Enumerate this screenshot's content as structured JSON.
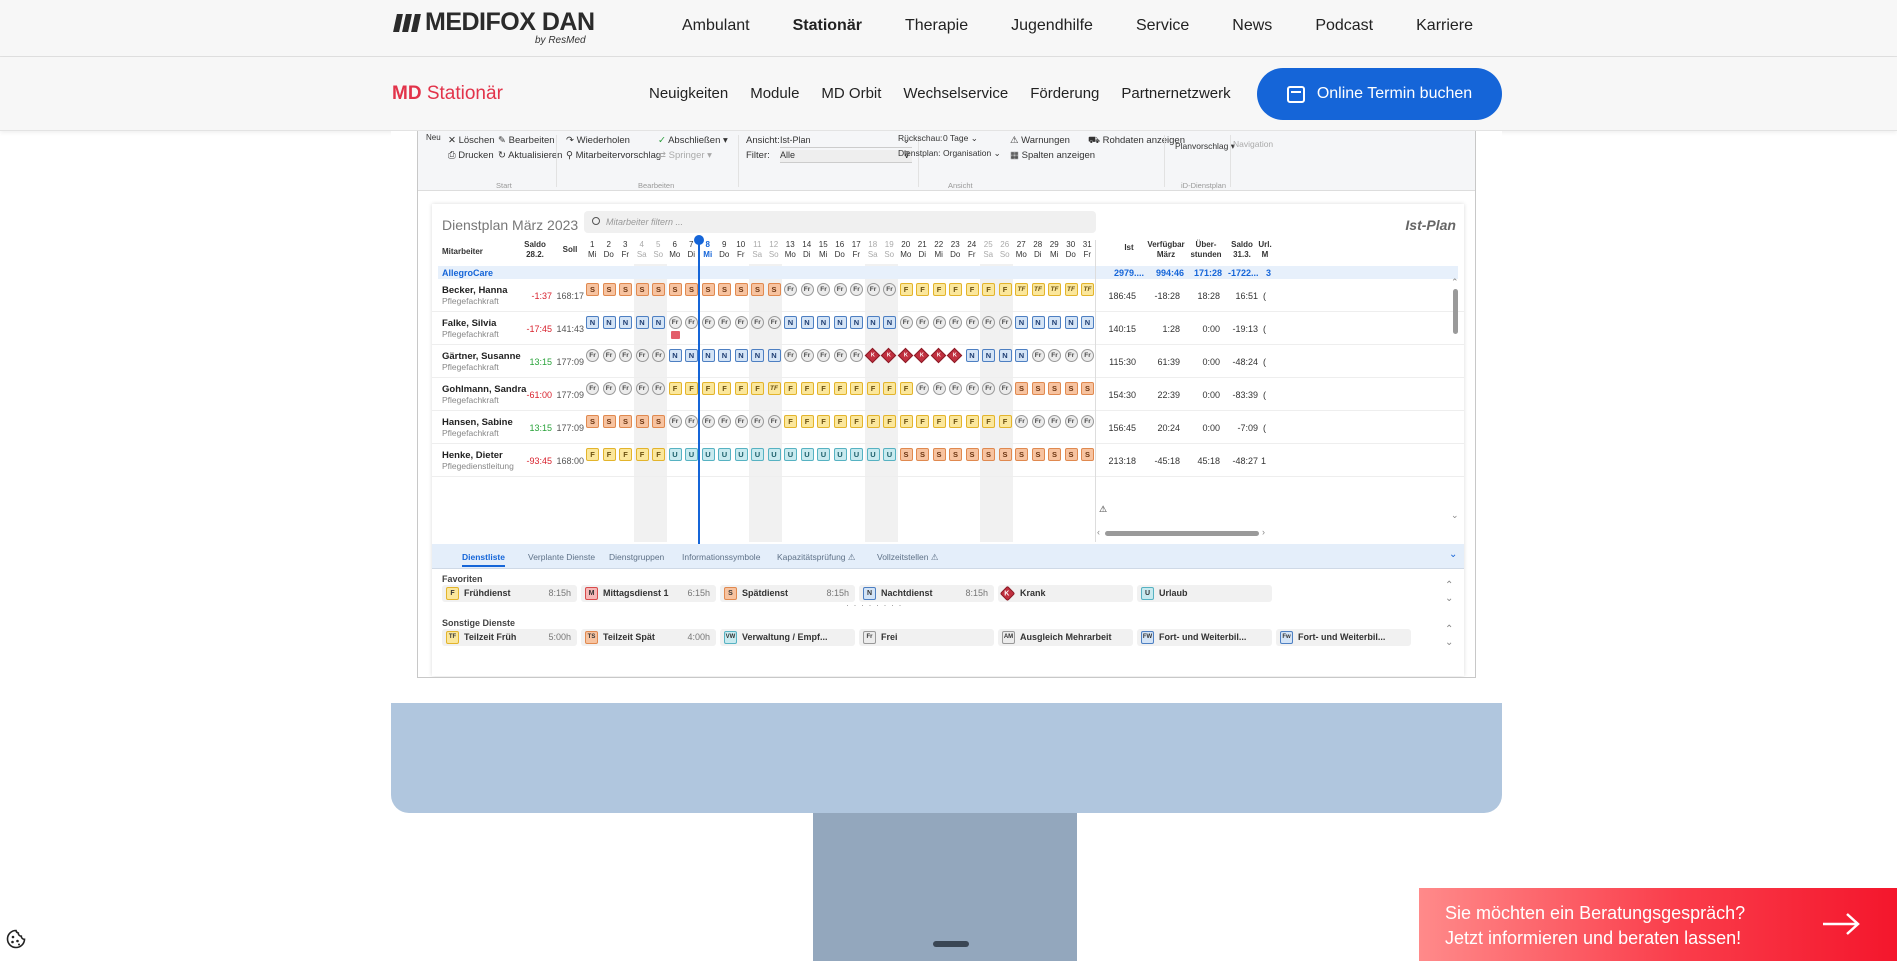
{
  "header": {
    "logo_name": "MEDIFOX DAN",
    "logo_by": "by ResMed",
    "nav": [
      "Ambulant",
      "Stationär",
      "Therapie",
      "Jugendhilfe",
      "Service",
      "News",
      "Podcast",
      "Karriere"
    ],
    "active_nav": "Stationär"
  },
  "subheader": {
    "brand_prefix": "MD",
    "brand_suffix": "Stationär",
    "nav": [
      "Neuigkeiten",
      "Module",
      "MD Orbit",
      "Wechselservice",
      "Förderung",
      "Partnernetzwerk"
    ],
    "cta_label": "Online Termin buchen"
  },
  "ribbon": {
    "new_label": "Neu",
    "delete": "Löschen",
    "edit": "Bearbeiten",
    "print": "Drucken",
    "refresh": "Aktualisieren",
    "repeat": "Wiederholen",
    "staff_suggestion": "Mitarbeitervorschlag",
    "complete": "Abschließen",
    "jumper": "Springer",
    "group_start": "Start",
    "group_edit": "Bearbeiten",
    "view_label": "Ansicht:",
    "view_value": "Ist-Plan",
    "filter_label": "Filter:",
    "filter_value": "Alle",
    "lookback_label": "Rückschau:",
    "lookback_value": "0 Tage",
    "roster_label": "Dienstplan:",
    "roster_value": "Organisation",
    "warnings": "Warnungen",
    "show_columns": "Spalten anzeigen",
    "raw_data": "Rohdaten anzeigen",
    "group_view": "Ansicht",
    "plan_suggestion": "Planvorschlag",
    "group_idienst": "iD-Dienstplan",
    "navigation": "Navigation"
  },
  "roster": {
    "title": "Dienstplan März 2023",
    "search_placeholder": "Mitarbeiter filtern ...",
    "mode_label": "Ist-Plan",
    "col_employee": "Mitarbeiter",
    "col_saldo_prev": "Saldo 28.2.",
    "col_soll": "Soll",
    "stat_headers": [
      "Ist",
      "Verfügbar März",
      "Über-stunden",
      "Saldo 31.3.",
      "Url. M"
    ],
    "days": [
      {
        "n": "1",
        "w": "Mi"
      },
      {
        "n": "2",
        "w": "Do"
      },
      {
        "n": "3",
        "w": "Fr"
      },
      {
        "n": "4",
        "w": "Sa"
      },
      {
        "n": "5",
        "w": "So"
      },
      {
        "n": "6",
        "w": "Mo"
      },
      {
        "n": "7",
        "w": "Di"
      },
      {
        "n": "8",
        "w": "Mi"
      },
      {
        "n": "9",
        "w": "Do"
      },
      {
        "n": "10",
        "w": "Fr"
      },
      {
        "n": "11",
        "w": "Sa"
      },
      {
        "n": "12",
        "w": "So"
      },
      {
        "n": "13",
        "w": "Mo"
      },
      {
        "n": "14",
        "w": "Di"
      },
      {
        "n": "15",
        "w": "Mi"
      },
      {
        "n": "16",
        "w": "Do"
      },
      {
        "n": "17",
        "w": "Fr"
      },
      {
        "n": "18",
        "w": "Sa"
      },
      {
        "n": "19",
        "w": "So"
      },
      {
        "n": "20",
        "w": "Mo"
      },
      {
        "n": "21",
        "w": "Di"
      },
      {
        "n": "22",
        "w": "Mi"
      },
      {
        "n": "23",
        "w": "Do"
      },
      {
        "n": "24",
        "w": "Fr"
      },
      {
        "n": "25",
        "w": "Sa"
      },
      {
        "n": "26",
        "w": "So"
      },
      {
        "n": "27",
        "w": "Mo"
      },
      {
        "n": "28",
        "w": "Di"
      },
      {
        "n": "29",
        "w": "Mi"
      },
      {
        "n": "30",
        "w": "Do"
      },
      {
        "n": "31",
        "w": "Fr"
      }
    ],
    "today_index": 7,
    "group": {
      "name": "AllegroCare",
      "stats": [
        "2979....",
        "994:46",
        "171:28",
        "-1722...",
        "3"
      ]
    },
    "employees": [
      {
        "name": "Becker, Hanna",
        "role": "Pflegefachkraft",
        "saldo": "-1:37",
        "soll": "168:17",
        "stats": [
          "186:45",
          "-18:28",
          "18:28",
          "16:51",
          "("
        ],
        "shifts": [
          "S",
          "S",
          "S",
          "S",
          "S",
          "S",
          "S",
          "S",
          "S",
          "S",
          "S",
          "S",
          "Fr",
          "Fr",
          "Fr",
          "Fr",
          "Fr",
          "Fr",
          "Fr",
          "F",
          "F",
          "F",
          "F",
          "F",
          "F",
          "F",
          "TF",
          "TF",
          "TF",
          "TF",
          "TF"
        ]
      },
      {
        "name": "Falke, Silvia",
        "role": "Pflegefachkraft",
        "saldo": "-17:45",
        "soll": "141:43",
        "stats": [
          "140:15",
          "1:28",
          "0:00",
          "-19:13",
          "("
        ],
        "shifts": [
          "N",
          "N",
          "N",
          "N",
          "N",
          "Fr",
          "Fr",
          "Fr",
          "Fr",
          "Fr",
          "Fr",
          "Fr",
          "N",
          "N",
          "N",
          "N",
          "N",
          "N",
          "N",
          "Fr",
          "Fr",
          "Fr",
          "Fr",
          "Fr",
          "Fr",
          "Fr",
          "N",
          "N",
          "N",
          "N",
          "N"
        ]
      },
      {
        "name": "Gärtner, Susanne",
        "role": "Pflegefachkraft",
        "saldo": "13:15",
        "soll": "177:09",
        "stats": [
          "115:30",
          "61:39",
          "0:00",
          "-48:24",
          "("
        ],
        "shifts": [
          "Fr",
          "Fr",
          "Fr",
          "Fr",
          "Fr",
          "N",
          "N",
          "N",
          "N",
          "N",
          "N",
          "N",
          "Fr",
          "Fr",
          "Fr",
          "Fr",
          "Fr",
          "K",
          "K",
          "K",
          "K",
          "K",
          "K",
          "N",
          "N",
          "N",
          "N",
          "Fr",
          "Fr",
          "Fr",
          "Fr"
        ]
      },
      {
        "name": "Gohlmann, Sandra",
        "role": "Pflegefachkraft",
        "saldo": "-61:00",
        "soll": "177:09",
        "stats": [
          "154:30",
          "22:39",
          "0:00",
          "-83:39",
          "("
        ],
        "shifts": [
          "Fr",
          "Fr",
          "Fr",
          "Fr",
          "Fr",
          "F",
          "F",
          "F",
          "F",
          "F",
          "F",
          "TF",
          "F",
          "F",
          "F",
          "F",
          "F",
          "F",
          "F",
          "F",
          "Fr",
          "Fr",
          "Fr",
          "Fr",
          "Fr",
          "Fr",
          "S",
          "S",
          "S",
          "S",
          "S"
        ]
      },
      {
        "name": "Hansen, Sabine",
        "role": "Pflegefachkraft",
        "saldo": "13:15",
        "soll": "177:09",
        "stats": [
          "156:45",
          "20:24",
          "0:00",
          "-7:09",
          "("
        ],
        "shifts": [
          "S",
          "S",
          "S",
          "S",
          "S",
          "Fr",
          "Fr",
          "Fr",
          "Fr",
          "Fr",
          "Fr",
          "Fr",
          "F",
          "F",
          "F",
          "F",
          "F",
          "F",
          "F",
          "F",
          "F",
          "F",
          "F",
          "F",
          "F",
          "F",
          "Fr",
          "Fr",
          "Fr",
          "Fr",
          "Fr"
        ]
      },
      {
        "name": "Henke, Dieter",
        "role": "Pflegedienstleitung",
        "saldo": "-93:45",
        "soll": "168:00",
        "stats": [
          "213:18",
          "-45:18",
          "45:18",
          "-48:27",
          "1"
        ],
        "shifts": [
          "F",
          "F",
          "F",
          "F",
          "F",
          "U",
          "U",
          "U",
          "U",
          "U",
          "U",
          "U",
          "U",
          "U",
          "U",
          "U",
          "U",
          "U",
          "U",
          "S",
          "S",
          "S",
          "S",
          "S",
          "S",
          "S",
          "S",
          "S",
          "S",
          "S",
          "S"
        ]
      }
    ]
  },
  "bottom_panel": {
    "tabs": [
      "Dienstliste",
      "Verplante Dienste",
      "Dienstgruppen",
      "Informationssymbole",
      "Kapazitätsprüfung",
      "Vollzeitstellen"
    ],
    "active_tab": "Dienstliste",
    "favorites_label": "Favoriten",
    "favorites": [
      {
        "code": "F",
        "name": "Frühdienst",
        "dur": "8:15h",
        "color": "#fbe79c",
        "border": "#e3b42b"
      },
      {
        "code": "M",
        "name": "Mittagsdienst 1",
        "dur": "6:15h",
        "color": "#f6b8b8",
        "border": "#d84b4b"
      },
      {
        "code": "S",
        "name": "Spätdienst",
        "dur": "8:15h",
        "color": "#f7c3a0",
        "border": "#e0894f"
      },
      {
        "code": "N",
        "name": "Nachtdienst",
        "dur": "8:15h",
        "color": "#d4e4f6",
        "border": "#4d7fc2"
      },
      {
        "code": "K",
        "name": "Krank",
        "dur": "",
        "color": "#c0303f",
        "border": "#8a1a25"
      },
      {
        "code": "U",
        "name": "Urlaub",
        "dur": "",
        "color": "#c8eaef",
        "border": "#56b2c2"
      }
    ],
    "other_label": "Sonstige Dienste",
    "other": [
      {
        "code": "TF",
        "name": "Teilzeit Früh",
        "dur": "5:00h",
        "color": "#fbe79c",
        "border": "#e3b42b"
      },
      {
        "code": "TS",
        "name": "Teilzeit Spät",
        "dur": "4:00h",
        "color": "#f7c3a0",
        "border": "#e0894f"
      },
      {
        "code": "VW",
        "name": "Verwaltung / Empf...",
        "dur": "",
        "color": "#c8eaef",
        "border": "#56b2c2"
      },
      {
        "code": "Fr",
        "name": "Frei",
        "dur": "",
        "color": "#ececec",
        "border": "#999999"
      },
      {
        "code": "AM",
        "name": "Ausgleich Mehrarbeit",
        "dur": "",
        "color": "#ececec",
        "border": "#999999"
      },
      {
        "code": "FW",
        "name": "Fort- und Weiterbil...",
        "dur": "",
        "color": "#d4e4f6",
        "border": "#4d7fc2"
      },
      {
        "code": "Fw",
        "name": "Fort- und Weiterbil...",
        "dur": "",
        "color": "#d4e4f6",
        "border": "#4d7fc2"
      }
    ]
  },
  "consult_banner": {
    "line1": "Sie möchten ein Beratungsgespräch?",
    "line2": "Jetzt informieren und beraten lassen!"
  },
  "icons": {
    "cookie": "cookie-icon",
    "arrow": "arrow-right-icon",
    "calendar": "calendar-icon",
    "search": "search-icon"
  }
}
